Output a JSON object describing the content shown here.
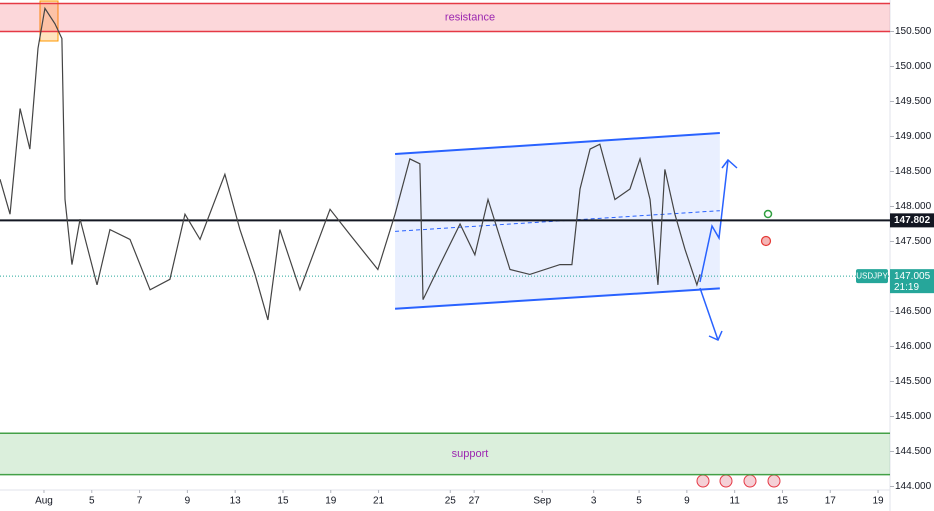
{
  "chart_data": {
    "type": "line",
    "x": [
      -1.84,
      -1.42,
      -1.0,
      -0.59,
      -0.25,
      0.04,
      0.46,
      0.75,
      0.88,
      1.17,
      1.51,
      2.22,
      2.76,
      3.6,
      4.44,
      5.27,
      5.9,
      6.53,
      7.57,
      8.2,
      8.83,
      9.37,
      9.87,
      10.71,
      11.97,
      12.8,
      13.97,
      14.69,
      15.31,
      15.73,
      15.86,
      16.57,
      17.41,
      18.03,
      18.58,
      19.5,
      20.33,
      21.59,
      22.09,
      22.43,
      22.85,
      23.26,
      23.89,
      24.52,
      24.94,
      25.36,
      25.69,
      25.98,
      26.4,
      26.82,
      27.32,
      27.45
    ],
    "series": [
      {
        "name": "USDJPY",
        "color": "#444444",
        "values": [
          148.39,
          147.89,
          149.4,
          148.82,
          150.26,
          150.83,
          150.61,
          150.4,
          148.1,
          147.17,
          147.82,
          146.88,
          147.67,
          147.53,
          146.81,
          146.96,
          147.89,
          147.53,
          148.46,
          147.67,
          147.03,
          146.38,
          147.67,
          146.81,
          147.96,
          147.6,
          147.1,
          147.89,
          148.68,
          148.61,
          146.67,
          147.17,
          147.75,
          147.31,
          148.1,
          147.1,
          147.03,
          147.17,
          147.17,
          148.25,
          148.82,
          148.89,
          148.1,
          148.25,
          148.68,
          148.1,
          146.88,
          148.53,
          147.89,
          147.39,
          146.88,
          147.03
        ]
      }
    ],
    "xlim": [
      -1.84,
      35.4
    ],
    "ylim": [
      143.95,
      150.95
    ],
    "xticks": [
      {
        "value": 0,
        "label": "Aug"
      },
      {
        "value": 2,
        "label": "5"
      },
      {
        "value": 4,
        "label": "7"
      },
      {
        "value": 6,
        "label": "9"
      },
      {
        "value": 8,
        "label": "13"
      },
      {
        "value": 10,
        "label": "15"
      },
      {
        "value": 12,
        "label": "19"
      },
      {
        "value": 14,
        "label": "21"
      },
      {
        "value": 17,
        "label": "25"
      },
      {
        "value": 18,
        "label": "27"
      },
      {
        "value": 20.85,
        "label": "Sep"
      },
      {
        "value": 23,
        "label": "3"
      },
      {
        "value": 24.9,
        "label": "5"
      },
      {
        "value": 26.9,
        "label": "9"
      },
      {
        "value": 28.9,
        "label": "11"
      },
      {
        "value": 30.9,
        "label": "15"
      },
      {
        "value": 32.9,
        "label": "17"
      },
      {
        "value": 34.9,
        "label": "19"
      }
    ],
    "yticks": [
      {
        "value": 144,
        "label": "144.000"
      },
      {
        "value": 144.5,
        "label": "144.500"
      },
      {
        "value": 145,
        "label": "145.000"
      },
      {
        "value": 145.5,
        "label": "145.500"
      },
      {
        "value": 146,
        "label": "146.000"
      },
      {
        "value": 146.5,
        "label": "146.500"
      },
      {
        "value": 147,
        "label": "147.000"
      },
      {
        "value": 147.5,
        "label": "147.500"
      },
      {
        "value": 148,
        "label": "148.000"
      },
      {
        "value": 148.5,
        "label": "148.500"
      },
      {
        "value": 149,
        "label": "149.000"
      },
      {
        "value": 149.5,
        "label": "149.500"
      },
      {
        "value": 150,
        "label": "150.000"
      },
      {
        "value": 150.5,
        "label": "150.500"
      }
    ],
    "grid": false,
    "level": 147.802,
    "last_price": 147.005,
    "countdown": "21:19",
    "resistance": {
      "label": "resistance",
      "from": 150.5,
      "to": 150.9
    },
    "support": {
      "label": "support",
      "from": 144.17,
      "to": 144.76
    },
    "channel": {
      "x": [
        14.69,
        28.28
      ],
      "upper": [
        148.75,
        149.05
      ],
      "lower": [
        146.54,
        146.83
      ]
    }
  }
}
